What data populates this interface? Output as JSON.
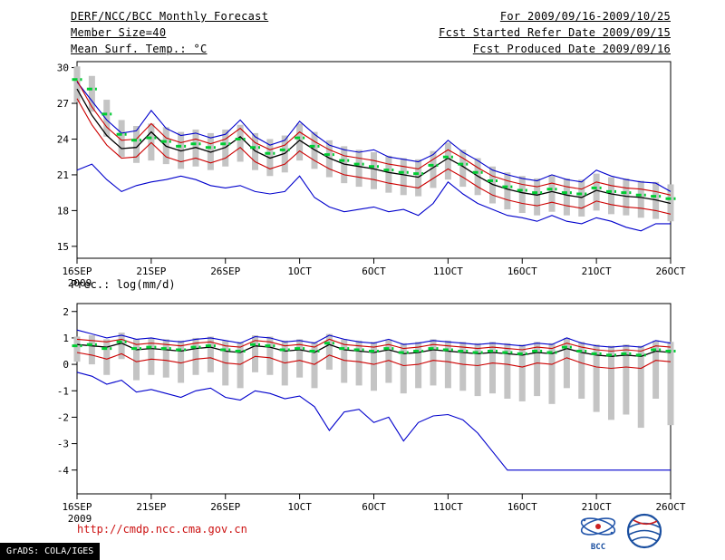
{
  "header": {
    "title": "DERF/NCC/BCC Monthly Forecast",
    "member_size": "Member Size=40",
    "temp_label": "Mean Surf. Temp.: °C",
    "for_period": "For 2009/09/16-2009/10/25",
    "refer_date": "Fcst Started Refer Date 2009/09/15",
    "produced_date": "Fcst Produced Date 2009/09/16"
  },
  "footer": {
    "url": "http://cmdp.ncc.cma.gov.cn",
    "grads": "GrADS: COLA/IGES",
    "bcc_label": "BCC"
  },
  "colors": {
    "spread_bar": "#c4c4c4",
    "ensemble_extreme": "#0000cc",
    "quartile": "#cc0000",
    "ensemble_mean": "#000000",
    "median_dash": "#00cc33",
    "url_text": "#cc1111"
  },
  "chart_data": [
    {
      "type": "line",
      "title": "Mean Surf. Temp.: °C",
      "ylabel": "°C",
      "ylim": [
        14,
        30.5
      ],
      "yticks": [
        15,
        18,
        21,
        24,
        27,
        30
      ],
      "n_days": 41,
      "x_tick_days": [
        0,
        5,
        10,
        15,
        20,
        25,
        30,
        35,
        40
      ],
      "x_tick_labels": [
        "16SEP",
        "21SEP",
        "26SEP",
        "1OCT",
        "6OCT",
        "11OCT",
        "16OCT",
        "21OCT",
        "26OCT"
      ],
      "x_year_label": "2009",
      "grid": false,
      "series": [
        {
          "name": "ensemble-spread-bar",
          "type": "bar-range",
          "color": "#c4c4c4",
          "top": [
            30.1,
            29.3,
            27.3,
            25.6,
            25.1,
            25.3,
            25.0,
            24.6,
            24.8,
            24.5,
            24.8,
            25.2,
            24.5,
            24.0,
            24.3,
            25.3,
            24.6,
            23.9,
            23.4,
            23.1,
            22.9,
            22.6,
            22.4,
            22.3,
            23.0,
            23.7,
            23.1,
            22.4,
            21.7,
            21.2,
            20.9,
            20.7,
            21.0,
            20.7,
            20.6,
            21.1,
            20.8,
            20.7,
            20.5,
            20.4,
            20.2
          ],
          "bottom": [
            27.1,
            26.3,
            24.2,
            22.5,
            22.0,
            22.2,
            21.9,
            21.5,
            21.7,
            21.4,
            21.7,
            22.1,
            21.4,
            20.9,
            21.2,
            22.2,
            21.5,
            20.8,
            20.3,
            20.0,
            19.8,
            19.5,
            19.3,
            19.2,
            19.9,
            20.6,
            20.0,
            19.3,
            18.6,
            18.1,
            17.8,
            17.6,
            17.9,
            17.6,
            17.5,
            18.0,
            17.7,
            17.6,
            17.4,
            17.3,
            17.1
          ]
        },
        {
          "name": "ensemble-max",
          "type": "line",
          "color": "#0000cc",
          "values": [
            28.8,
            27.2,
            25.6,
            24.5,
            24.7,
            26.4,
            24.9,
            24.3,
            24.5,
            24.1,
            24.4,
            25.6,
            24.2,
            23.5,
            23.9,
            25.5,
            24.4,
            23.5,
            23.1,
            22.9,
            23.1,
            22.5,
            22.3,
            22.1,
            22.7,
            23.9,
            22.9,
            22.2,
            21.4,
            21.0,
            20.7,
            20.5,
            21.0,
            20.6,
            20.4,
            21.4,
            20.9,
            20.6,
            20.4,
            20.3,
            19.6
          ]
        },
        {
          "name": "ensemble-min",
          "type": "line",
          "color": "#0000cc",
          "values": [
            21.4,
            21.9,
            20.6,
            19.6,
            20.1,
            20.4,
            20.6,
            20.9,
            20.6,
            20.1,
            19.9,
            20.1,
            19.6,
            19.4,
            19.6,
            20.9,
            19.1,
            18.3,
            17.9,
            18.1,
            18.3,
            17.9,
            18.1,
            17.6,
            18.6,
            20.4,
            19.4,
            18.6,
            18.1,
            17.6,
            17.4,
            17.1,
            17.6,
            17.1,
            16.9,
            17.4,
            17.1,
            16.6,
            16.3,
            16.9,
            16.9
          ]
        },
        {
          "name": "upper-quartile",
          "type": "line",
          "color": "#cc0000",
          "values": [
            28.9,
            26.7,
            25.0,
            23.9,
            24.0,
            25.3,
            24.1,
            23.7,
            24.0,
            23.6,
            24.0,
            24.9,
            23.7,
            23.1,
            23.5,
            24.6,
            23.8,
            23.1,
            22.6,
            22.4,
            22.2,
            21.9,
            21.7,
            21.5,
            22.3,
            23.1,
            22.4,
            21.6,
            20.9,
            20.5,
            20.2,
            20.0,
            20.3,
            20.0,
            19.8,
            20.4,
            20.1,
            19.9,
            19.8,
            19.6,
            19.3
          ]
        },
        {
          "name": "lower-quartile",
          "type": "line",
          "color": "#cc0000",
          "values": [
            27.4,
            25.2,
            23.5,
            22.4,
            22.5,
            23.7,
            22.5,
            22.1,
            22.4,
            22.0,
            22.4,
            23.3,
            22.1,
            21.5,
            21.9,
            23.0,
            22.2,
            21.5,
            21.0,
            20.8,
            20.6,
            20.3,
            20.1,
            19.9,
            20.7,
            21.5,
            20.8,
            20.0,
            19.3,
            18.9,
            18.6,
            18.4,
            18.7,
            18.4,
            18.2,
            18.8,
            18.5,
            18.3,
            18.2,
            18.0,
            17.7
          ]
        },
        {
          "name": "ensemble-mean",
          "type": "line",
          "color": "#000000",
          "values": [
            28.2,
            26.0,
            24.3,
            23.2,
            23.3,
            24.6,
            23.4,
            23.0,
            23.3,
            22.9,
            23.3,
            24.2,
            23.0,
            22.4,
            22.8,
            23.9,
            23.1,
            22.4,
            21.9,
            21.7,
            21.5,
            21.2,
            21.0,
            20.8,
            21.6,
            22.4,
            21.7,
            20.9,
            20.2,
            19.8,
            19.5,
            19.3,
            19.6,
            19.3,
            19.1,
            19.7,
            19.4,
            19.2,
            19.1,
            18.9,
            18.6
          ]
        },
        {
          "name": "ensemble-median",
          "type": "dash",
          "color": "#00cc33",
          "values": [
            29.0,
            28.2,
            26.1,
            24.4,
            23.9,
            24.1,
            23.8,
            23.4,
            23.6,
            23.3,
            23.6,
            24.0,
            23.3,
            22.8,
            23.1,
            24.1,
            23.4,
            22.7,
            22.2,
            21.9,
            21.7,
            21.4,
            21.2,
            21.1,
            21.8,
            22.5,
            21.9,
            21.2,
            20.5,
            20.0,
            19.7,
            19.5,
            19.8,
            19.5,
            19.4,
            19.9,
            19.6,
            19.5,
            19.3,
            19.2,
            19.0
          ]
        }
      ]
    },
    {
      "type": "line",
      "title": "Prec.: log(mm/d)",
      "ylabel": "log(mm/d)",
      "ylim": [
        -4.9,
        2.3
      ],
      "yticks": [
        -4,
        -3,
        -2,
        -1,
        0,
        1,
        2
      ],
      "n_days": 41,
      "x_tick_days": [
        0,
        5,
        10,
        15,
        20,
        25,
        30,
        35,
        40
      ],
      "x_tick_labels": [
        "16SEP",
        "21SEP",
        "26SEP",
        "1OCT",
        "6OCT",
        "11OCT",
        "16OCT",
        "21OCT",
        "26OCT"
      ],
      "x_year_label": "2009",
      "grid": false,
      "series": [
        {
          "name": "ensemble-spread-bar",
          "type": "bar-range",
          "color": "#c4c4c4",
          "top": [
            1.05,
            1.1,
            0.95,
            1.2,
            0.95,
            1.0,
            0.95,
            0.9,
            1.0,
            1.05,
            0.9,
            0.85,
            1.1,
            1.05,
            0.9,
            0.95,
            0.85,
            1.15,
            0.95,
            0.9,
            0.85,
            0.95,
            0.8,
            0.85,
            0.95,
            0.9,
            0.85,
            0.8,
            0.85,
            0.8,
            0.75,
            0.85,
            0.8,
            1.0,
            0.85,
            0.75,
            0.7,
            0.75,
            0.7,
            0.9,
            0.85
          ],
          "bottom": [
            0.1,
            0.0,
            -0.4,
            0.2,
            -0.6,
            -0.4,
            -0.5,
            -0.7,
            -0.4,
            -0.3,
            -0.8,
            -0.9,
            -0.3,
            -0.4,
            -0.8,
            -0.5,
            -0.9,
            -0.2,
            -0.7,
            -0.8,
            -1.0,
            -0.7,
            -1.1,
            -0.9,
            -0.8,
            -0.9,
            -1.0,
            -1.2,
            -1.1,
            -1.3,
            -1.4,
            -1.2,
            -1.5,
            -0.9,
            -1.3,
            -1.8,
            -2.1,
            -1.9,
            -2.4,
            -1.3,
            -2.3
          ]
        },
        {
          "name": "ensemble-max",
          "type": "line",
          "color": "#0000cc",
          "values": [
            1.3,
            1.15,
            1.0,
            1.1,
            0.95,
            1.0,
            0.9,
            0.85,
            0.95,
            1.0,
            0.9,
            0.8,
            1.05,
            1.0,
            0.85,
            0.9,
            0.8,
            1.1,
            0.95,
            0.85,
            0.8,
            0.95,
            0.75,
            0.8,
            0.9,
            0.85,
            0.8,
            0.75,
            0.8,
            0.75,
            0.7,
            0.8,
            0.75,
            1.0,
            0.8,
            0.7,
            0.65,
            0.7,
            0.65,
            0.9,
            0.8
          ]
        },
        {
          "name": "ensemble-min",
          "type": "line",
          "color": "#0000cc",
          "values": [
            -0.3,
            -0.45,
            -0.75,
            -0.6,
            -1.05,
            -0.95,
            -1.1,
            -1.25,
            -1.0,
            -0.9,
            -1.25,
            -1.35,
            -1.0,
            -1.1,
            -1.3,
            -1.2,
            -1.6,
            -2.5,
            -1.8,
            -1.7,
            -2.2,
            -2.0,
            -2.9,
            -2.2,
            -1.95,
            -1.9,
            -2.1,
            -2.6,
            -3.3,
            -4.0,
            -4.0,
            -4.0,
            -4.0,
            -4.0,
            -4.0,
            -4.0,
            -4.0,
            -4.0,
            -4.0,
            -4.0,
            -4.0
          ]
        },
        {
          "name": "upper-quartile",
          "type": "line",
          "color": "#cc0000",
          "values": [
            0.95,
            0.9,
            0.85,
            0.95,
            0.75,
            0.8,
            0.75,
            0.7,
            0.8,
            0.85,
            0.7,
            0.65,
            0.9,
            0.85,
            0.7,
            0.75,
            0.65,
            0.95,
            0.75,
            0.7,
            0.65,
            0.75,
            0.6,
            0.65,
            0.75,
            0.7,
            0.65,
            0.6,
            0.65,
            0.6,
            0.55,
            0.65,
            0.6,
            0.8,
            0.65,
            0.55,
            0.5,
            0.55,
            0.5,
            0.7,
            0.65
          ]
        },
        {
          "name": "lower-quartile",
          "type": "line",
          "color": "#cc0000",
          "values": [
            0.45,
            0.35,
            0.2,
            0.4,
            0.1,
            0.2,
            0.15,
            0.05,
            0.2,
            0.25,
            0.05,
            0.0,
            0.3,
            0.25,
            0.05,
            0.15,
            0.0,
            0.35,
            0.15,
            0.1,
            0.0,
            0.15,
            -0.05,
            0.0,
            0.15,
            0.1,
            0.0,
            -0.05,
            0.05,
            0.0,
            -0.1,
            0.05,
            0.0,
            0.25,
            0.05,
            -0.1,
            -0.15,
            -0.1,
            -0.15,
            0.15,
            0.1
          ]
        },
        {
          "name": "ensemble-mean",
          "type": "line",
          "color": "#000000",
          "values": [
            0.75,
            0.7,
            0.65,
            0.8,
            0.55,
            0.6,
            0.55,
            0.5,
            0.6,
            0.65,
            0.5,
            0.45,
            0.7,
            0.65,
            0.5,
            0.55,
            0.45,
            0.75,
            0.55,
            0.5,
            0.45,
            0.55,
            0.4,
            0.45,
            0.55,
            0.5,
            0.45,
            0.4,
            0.45,
            0.4,
            0.35,
            0.45,
            0.4,
            0.6,
            0.45,
            0.35,
            0.3,
            0.35,
            0.3,
            0.5,
            0.45
          ]
        },
        {
          "name": "ensemble-median",
          "type": "dash",
          "color": "#00cc33",
          "values": [
            0.7,
            0.75,
            0.6,
            0.85,
            0.6,
            0.65,
            0.6,
            0.55,
            0.65,
            0.7,
            0.55,
            0.5,
            0.75,
            0.7,
            0.55,
            0.6,
            0.5,
            0.8,
            0.6,
            0.55,
            0.5,
            0.6,
            0.45,
            0.5,
            0.6,
            0.55,
            0.5,
            0.45,
            0.5,
            0.45,
            0.4,
            0.5,
            0.45,
            0.65,
            0.5,
            0.4,
            0.35,
            0.4,
            0.35,
            0.55,
            0.5
          ]
        }
      ]
    }
  ]
}
